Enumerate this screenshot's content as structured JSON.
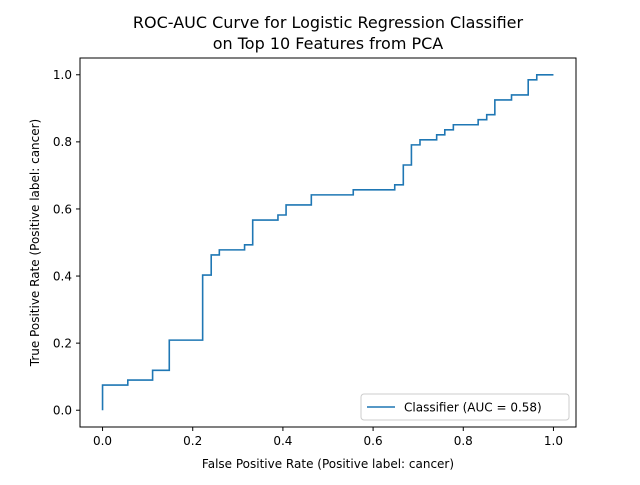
{
  "chart_data": {
    "type": "line",
    "title_lines": [
      "ROC-AUC Curve for Logistic Regression Classifier",
      "on Top 10 Features from PCA"
    ],
    "xlabel": "False Positive Rate (Positive label: cancer)",
    "ylabel": "True Positive Rate (Positive label: cancer)",
    "xlim": [
      -0.05,
      1.05
    ],
    "ylim": [
      -0.05,
      1.05
    ],
    "xticks": [
      0.0,
      0.2,
      0.4,
      0.6,
      0.8,
      1.0
    ],
    "yticks": [
      0.0,
      0.2,
      0.4,
      0.6,
      0.8,
      1.0
    ],
    "xtick_labels": [
      "0.0",
      "0.2",
      "0.4",
      "0.6",
      "0.8",
      "1.0"
    ],
    "ytick_labels": [
      "0.0",
      "0.2",
      "0.4",
      "0.6",
      "0.8",
      "1.0"
    ],
    "grid": false,
    "legend_position": "lower-right",
    "series": [
      {
        "name": "Classifier (AUC = 0.58)",
        "color": "#1f77b4",
        "x": [
          0.0,
          0.0,
          0.056,
          0.056,
          0.111,
          0.111,
          0.148,
          0.148,
          0.222,
          0.222,
          0.241,
          0.241,
          0.259,
          0.259,
          0.315,
          0.315,
          0.333,
          0.333,
          0.389,
          0.389,
          0.407,
          0.407,
          0.463,
          0.463,
          0.556,
          0.556,
          0.648,
          0.648,
          0.667,
          0.667,
          0.685,
          0.685,
          0.704,
          0.704,
          0.741,
          0.741,
          0.759,
          0.759,
          0.778,
          0.778,
          0.833,
          0.833,
          0.852,
          0.852,
          0.87,
          0.87,
          0.907,
          0.907,
          0.944,
          0.944,
          0.963,
          0.963,
          1.0
        ],
        "y": [
          0.0,
          0.075,
          0.075,
          0.09,
          0.09,
          0.119,
          0.119,
          0.209,
          0.209,
          0.403,
          0.403,
          0.463,
          0.463,
          0.478,
          0.478,
          0.493,
          0.493,
          0.567,
          0.567,
          0.582,
          0.582,
          0.612,
          0.612,
          0.642,
          0.642,
          0.657,
          0.657,
          0.672,
          0.672,
          0.731,
          0.731,
          0.791,
          0.791,
          0.806,
          0.806,
          0.821,
          0.821,
          0.836,
          0.836,
          0.851,
          0.851,
          0.866,
          0.866,
          0.881,
          0.881,
          0.925,
          0.925,
          0.94,
          0.94,
          0.985,
          0.985,
          1.0,
          1.0
        ]
      }
    ]
  }
}
